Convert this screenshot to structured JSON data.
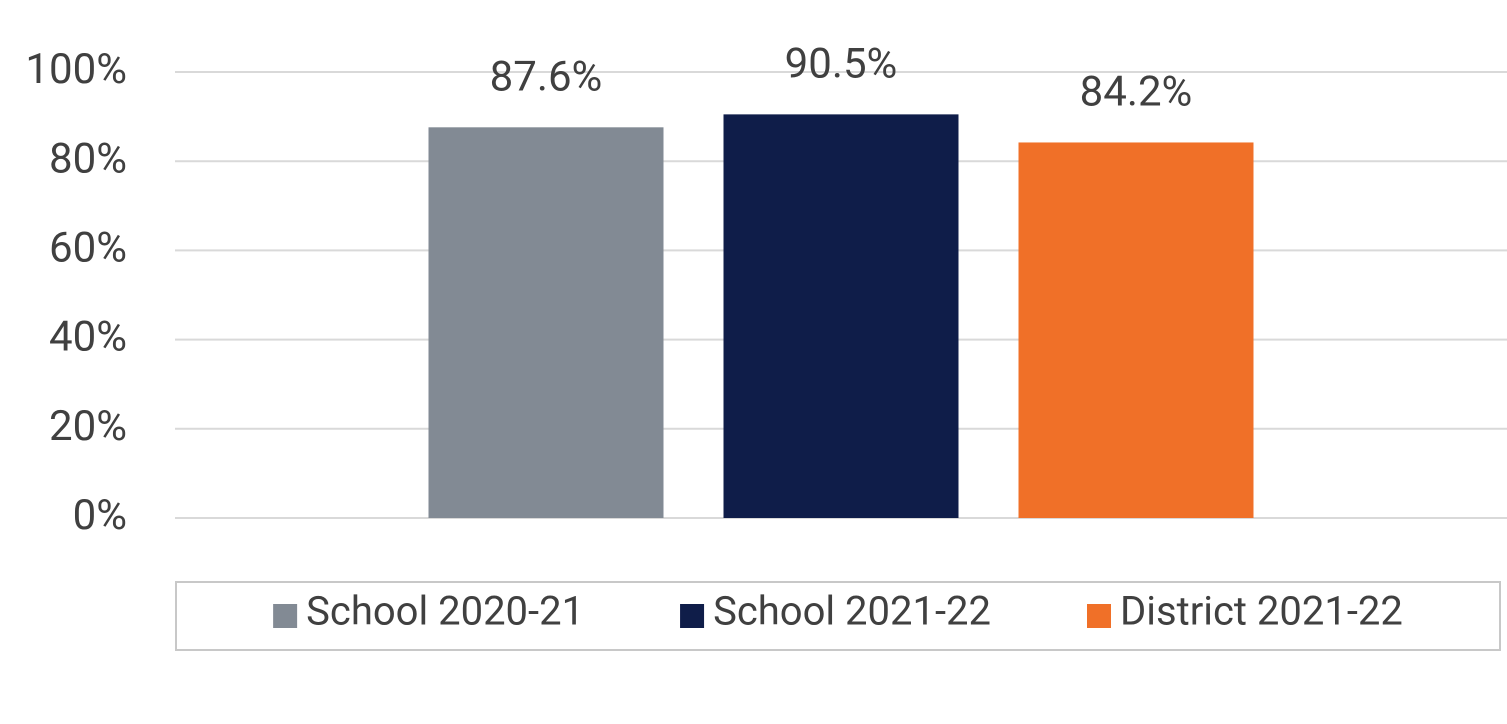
{
  "chart_data": {
    "type": "bar",
    "categories": [
      null
    ],
    "series": [
      {
        "name": "School 2020-21",
        "color": "#828a94",
        "values": [
          87.6
        ],
        "value_labels": [
          "87.6%"
        ]
      },
      {
        "name": "School 2021-22",
        "color": "#0f1d49",
        "values": [
          90.5
        ],
        "value_labels": [
          "90.5%"
        ]
      },
      {
        "name": "District 2021-22",
        "color": "#f07028",
        "values": [
          84.2
        ],
        "value_labels": [
          "84.2%"
        ]
      }
    ],
    "ylim": [
      0,
      100
    ],
    "yticks": [
      {
        "value": 0,
        "label": "0%"
      },
      {
        "value": 20,
        "label": "20%"
      },
      {
        "value": 40,
        "label": "40%"
      },
      {
        "value": 60,
        "label": "60%"
      },
      {
        "value": 80,
        "label": "80%"
      },
      {
        "value": 100,
        "label": "100%"
      }
    ],
    "grid": true,
    "legend": "bottom"
  }
}
